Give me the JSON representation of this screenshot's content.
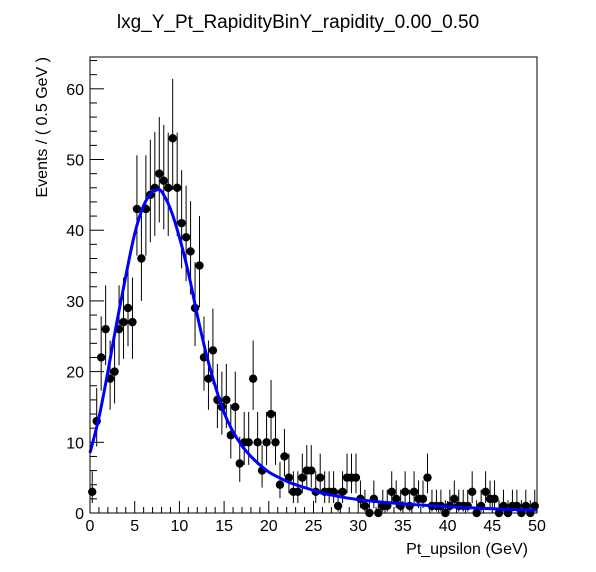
{
  "chart_data": {
    "type": "scatter",
    "title": "lxg_Y_Pt_RapidityBinY_rapidity_0.00_0.50",
    "xlabel": "Pt_upsilon (GeV)",
    "ylabel": "Events / ( 0.5 GeV )",
    "xlim": [
      0,
      50
    ],
    "ylim": [
      0,
      64.5
    ],
    "x_ticks": [
      0,
      5,
      10,
      15,
      20,
      25,
      30,
      35,
      40,
      45,
      50
    ],
    "y_ticks": [
      0,
      10,
      20,
      30,
      40,
      50,
      60
    ],
    "grid": false,
    "legend": "none",
    "colors": {
      "points": "#000000",
      "fit": "#0000ff",
      "frame": "#000000"
    },
    "series": [
      {
        "kind": "points-with-errors",
        "x": [
          0.25,
          0.75,
          1.25,
          1.75,
          2.25,
          2.75,
          3.25,
          3.75,
          4.25,
          4.75,
          5.25,
          5.75,
          6.25,
          6.75,
          7.25,
          7.75,
          8.25,
          8.75,
          9.25,
          9.75,
          10.25,
          10.75,
          11.25,
          11.75,
          12.25,
          12.75,
          13.25,
          13.75,
          14.25,
          14.75,
          15.25,
          15.75,
          16.25,
          16.75,
          17.25,
          17.75,
          18.25,
          18.75,
          19.25,
          19.75,
          20.25,
          20.75,
          21.25,
          21.75,
          22.25,
          22.75,
          23.25,
          23.75,
          24.25,
          24.75,
          25.25,
          25.75,
          26.25,
          26.75,
          27.25,
          27.75,
          28.25,
          28.75,
          29.25,
          29.75,
          30.25,
          30.75,
          31.25,
          31.75,
          32.25,
          32.75,
          33.25,
          33.75,
          34.25,
          34.75,
          35.25,
          35.75,
          36.25,
          36.75,
          37.25,
          37.75,
          38.25,
          38.75,
          39.25,
          39.75,
          40.25,
          40.75,
          41.25,
          41.75,
          42.25,
          42.75,
          43.25,
          43.75,
          44.25,
          44.75,
          45.25,
          45.75,
          46.25,
          46.75,
          47.25,
          47.75,
          48.25,
          48.75,
          49.25,
          49.75
        ],
        "y": [
          3,
          13,
          22,
          26,
          19,
          20,
          26,
          27,
          29,
          27,
          43,
          36,
          43,
          45,
          46,
          48,
          47,
          46,
          53,
          46,
          41,
          39,
          37,
          29,
          35,
          22,
          19,
          23,
          16,
          15,
          16,
          11,
          15,
          7,
          10,
          10,
          19,
          10,
          6,
          10,
          14,
          10,
          4,
          8,
          5,
          3,
          3,
          5,
          6,
          6,
          3,
          5,
          3,
          3,
          3,
          1,
          3,
          5,
          5,
          5,
          2,
          1,
          0,
          2,
          0,
          1,
          1,
          3,
          2,
          1,
          3,
          1,
          3,
          2,
          2,
          5,
          1,
          1,
          1,
          0,
          1,
          2,
          1,
          1,
          1,
          3,
          0,
          1,
          3,
          2,
          2,
          0,
          1,
          0,
          1,
          1,
          0,
          1,
          0,
          1
        ],
        "yerr_low": [
          1.6,
          3.6,
          4.7,
          5.1,
          4.4,
          4.5,
          5.1,
          5.2,
          5.4,
          5.2,
          6.6,
          6.0,
          6.6,
          6.7,
          6.8,
          6.9,
          6.9,
          6.8,
          7.3,
          6.8,
          6.4,
          6.2,
          6.1,
          5.4,
          5.9,
          4.7,
          4.4,
          4.8,
          4.0,
          3.9,
          4.0,
          3.3,
          3.9,
          2.6,
          3.2,
          3.2,
          4.4,
          3.2,
          2.4,
          3.2,
          3.7,
          3.2,
          1.9,
          2.8,
          2.2,
          1.6,
          1.6,
          2.2,
          2.4,
          2.4,
          1.6,
          2.2,
          1.6,
          1.6,
          1.6,
          0.8,
          1.6,
          2.2,
          2.2,
          2.2,
          1.3,
          0.8,
          0,
          1.3,
          0,
          0.8,
          0.8,
          1.6,
          1.3,
          0.8,
          1.6,
          0.8,
          1.6,
          1.3,
          1.3,
          2.2,
          0.8,
          0.8,
          0.8,
          0,
          0.8,
          1.3,
          0.8,
          0.8,
          0.8,
          1.6,
          0,
          0.8,
          1.6,
          1.3,
          1.3,
          0,
          0.8,
          0,
          0.8,
          0.8,
          0,
          0.8,
          0,
          0.8
        ],
        "yerr_high": [
          2.9,
          4.7,
          5.8,
          6.2,
          5.4,
          5.6,
          6.2,
          6.3,
          6.5,
          6.3,
          7.6,
          7.1,
          7.6,
          7.8,
          7.9,
          8.0,
          7.9,
          7.8,
          8.4,
          7.8,
          7.5,
          7.3,
          7.1,
          6.5,
          7.0,
          5.8,
          5.4,
          5.9,
          5.1,
          5.0,
          5.1,
          4.4,
          5.0,
          3.8,
          4.3,
          4.3,
          5.4,
          4.3,
          3.6,
          4.3,
          4.8,
          4.3,
          3.2,
          3.9,
          3.4,
          2.9,
          2.9,
          3.4,
          3.6,
          3.6,
          2.9,
          3.4,
          2.9,
          2.9,
          2.9,
          2.3,
          2.9,
          3.4,
          3.4,
          3.4,
          2.6,
          2.3,
          1.8,
          2.6,
          1.8,
          2.3,
          2.3,
          2.9,
          2.6,
          2.3,
          2.9,
          2.3,
          2.9,
          2.6,
          2.6,
          3.4,
          2.3,
          2.3,
          2.3,
          1.8,
          2.3,
          2.6,
          2.3,
          2.3,
          2.3,
          2.9,
          1.8,
          2.3,
          2.9,
          2.6,
          2.6,
          1.8,
          2.3,
          1.8,
          2.3,
          2.3,
          1.8,
          2.3,
          1.8,
          2.3
        ]
      },
      {
        "kind": "fit-curve",
        "x": [
          0,
          1,
          2,
          3,
          4,
          5,
          6,
          7,
          7.5,
          8,
          9,
          10,
          11,
          12,
          13,
          14,
          15,
          16,
          17,
          18,
          19,
          20,
          21,
          22,
          23,
          24,
          25,
          26,
          28,
          30,
          33,
          36,
          40,
          45,
          50
        ],
        "y": [
          8.5,
          13.5,
          20,
          27,
          33.5,
          39.5,
          43.5,
          45.5,
          45.7,
          45.5,
          43,
          39,
          34,
          28,
          22.5,
          18,
          14.2,
          11.5,
          9.5,
          8,
          6.8,
          5.8,
          5.1,
          4.5,
          4,
          3.6,
          3.2,
          2.8,
          2.3,
          1.9,
          1.5,
          1.2,
          0.9,
          0.6,
          0.4
        ]
      }
    ]
  }
}
